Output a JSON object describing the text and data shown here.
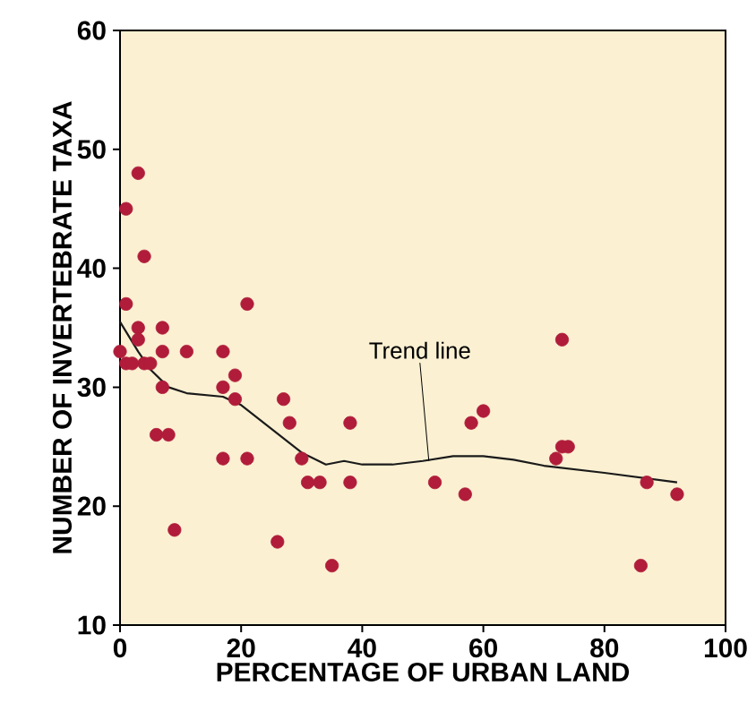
{
  "chart_data": {
    "type": "scatter",
    "xlabel": "PERCENTAGE OF URBAN LAND",
    "ylabel": "NUMBER OF INVERTEBRATE TAXA",
    "xlim": [
      0,
      100
    ],
    "ylim": [
      10,
      60
    ],
    "xticks": [
      0,
      20,
      40,
      60,
      80,
      100
    ],
    "yticks": [
      10,
      20,
      30,
      40,
      50,
      60
    ],
    "grid": false,
    "marker": "circle",
    "annotations": [
      {
        "text": "Trend line",
        "x": 51,
        "y": 23.8
      }
    ],
    "series": [
      {
        "color": "#b01c3a",
        "x": [
          0,
          1,
          1,
          1,
          3,
          3,
          3,
          2,
          4,
          4,
          5,
          6,
          7,
          7,
          7,
          8,
          9,
          11,
          17,
          17,
          17,
          19,
          19,
          21,
          21,
          26,
          27,
          28,
          30,
          31,
          33,
          35,
          38,
          38,
          52,
          57,
          58,
          60,
          72,
          73,
          73,
          74,
          86,
          87,
          92
        ],
        "values": [
          33,
          45,
          37,
          32,
          48,
          35,
          34,
          32,
          32,
          41,
          32,
          26,
          35,
          33,
          30,
          26,
          18,
          33,
          24,
          33,
          30,
          31,
          29,
          37,
          24,
          17,
          29,
          27,
          24,
          22,
          22,
          15,
          27,
          22,
          22,
          21,
          27,
          28,
          24,
          34,
          25,
          25,
          15,
          22,
          21
        ]
      },
      {
        "type": "line",
        "color": "#1a1a1a",
        "marker": "none",
        "x": [
          0,
          3,
          5,
          8,
          11,
          17,
          20,
          25,
          30,
          34,
          37,
          40,
          45,
          50,
          55,
          60,
          65,
          70,
          80,
          92
        ],
        "values": [
          35.5,
          33,
          31.5,
          30,
          29.5,
          29.2,
          28.5,
          26.5,
          24.5,
          23.5,
          23.8,
          23.5,
          23.5,
          23.8,
          24.2,
          24.2,
          23.9,
          23.4,
          22.8,
          22
        ]
      }
    ]
  }
}
